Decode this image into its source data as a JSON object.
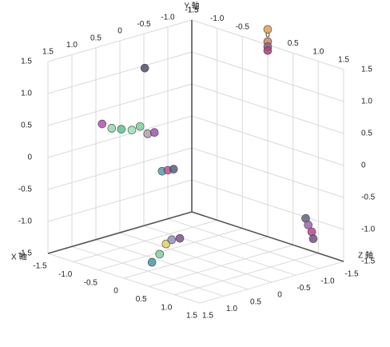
{
  "chart_data": {
    "type": "scatter3d",
    "xlabel": "X 軸",
    "ylabel": "Y 軸",
    "zlabel": "Z 軸",
    "xlim": [
      -1.5,
      1.5
    ],
    "ylim": [
      -1.5,
      1.5
    ],
    "zlim": [
      -1.5,
      1.5
    ],
    "xticks": [
      -1.5,
      {
        "value": -1,
        "label": "-1.0"
      },
      -0.5,
      0,
      0.5,
      {
        "value": 1,
        "label": "1.0"
      },
      1.5
    ],
    "yticks": [
      -1.5,
      {
        "value": -1,
        "label": "-1.0"
      },
      -0.5,
      0,
      0.5,
      {
        "value": 1,
        "label": "1.0"
      },
      1.5
    ],
    "zticks": [
      -1.5,
      {
        "value": -1,
        "label": "-1.0"
      },
      -0.5,
      0,
      0.5,
      {
        "value": 1,
        "label": "1.0"
      },
      1.5
    ],
    "grid": true,
    "points": [
      {
        "x": -1.5,
        "y": 0.28,
        "z": 0.37,
        "color": "#b04fb0"
      },
      {
        "x": -1.5,
        "y": 0.17,
        "z": 0.17,
        "color": "#8fd9a8"
      },
      {
        "x": -1.5,
        "y": 0.11,
        "z": -0.03,
        "color": "#5cc48a"
      },
      {
        "x": -1.5,
        "y": 0.05,
        "z": -0.25,
        "color": "#9be0b5"
      },
      {
        "x": -1.5,
        "y": 0.07,
        "z": -0.42,
        "color": "#7ccf98"
      },
      {
        "x": -1.5,
        "y": -0.08,
        "z": -0.58,
        "color": "#b0a0a8"
      },
      {
        "x": -1.5,
        "y": -0.09,
        "z": -0.72,
        "color": "#a050b0"
      },
      {
        "x": -1.5,
        "y": 0.96,
        "z": -0.52,
        "color": "#505070"
      },
      {
        "x": -1.5,
        "y": -0.73,
        "z": -0.88,
        "color": "#4fa0b0"
      },
      {
        "x": -1.5,
        "y": -0.74,
        "z": -1.0,
        "color": "#c05090"
      },
      {
        "x": -1.5,
        "y": -0.75,
        "z": -1.12,
        "color": "#506080"
      },
      {
        "x": 0,
        "y": 1.74,
        "z": -1.5,
        "color": "#e0a050"
      },
      {
        "x": 0,
        "y": 1.55,
        "z": -1.5,
        "color": "#d08060"
      },
      {
        "x": 0,
        "y": 1.47,
        "z": -1.5,
        "color": "#9060a0"
      },
      {
        "x": 0,
        "y": 1.41,
        "z": -1.5,
        "color": "#b04070"
      },
      {
        "x": 0.75,
        "y": -1.02,
        "z": -1.5,
        "color": "#606080"
      },
      {
        "x": 0.8,
        "y": -1.11,
        "z": -1.5,
        "color": "#a060b0"
      },
      {
        "x": 0.87,
        "y": -1.2,
        "z": -1.5,
        "color": "#c04090"
      },
      {
        "x": 0.9,
        "y": -1.3,
        "z": -1.5,
        "color": "#705080"
      },
      {
        "x": -0.25,
        "y": -1.5,
        "z": 0.65,
        "color": "#3f9aa0"
      },
      {
        "x": -0.44,
        "y": -1.5,
        "z": 0.29,
        "color": "#7dd09a"
      },
      {
        "x": -0.71,
        "y": -1.5,
        "z": -0.13,
        "color": "#e0d060"
      },
      {
        "x": -0.79,
        "y": -1.5,
        "z": -0.33,
        "color": "#9090c0"
      },
      {
        "x": -0.76,
        "y": -1.5,
        "z": -0.47,
        "color": "#805090"
      }
    ]
  }
}
